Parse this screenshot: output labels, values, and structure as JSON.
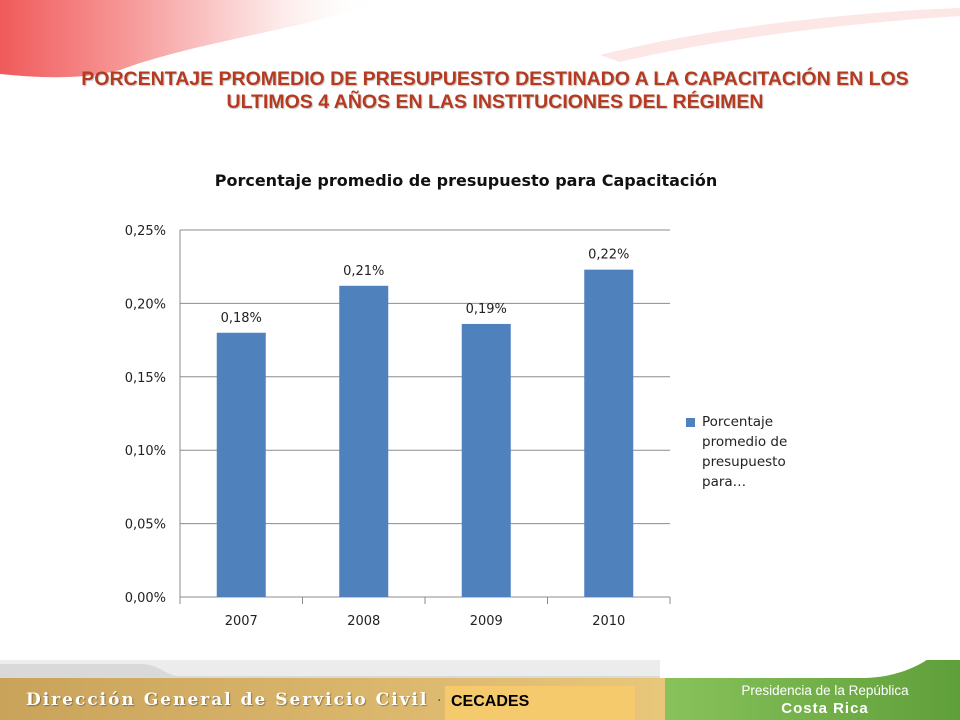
{
  "slide": {
    "title": "PORCENTAJE PROMEDIO DE PRESUPUESTO DESTINADO A LA CAPACITACIÓN EN LOS ULTIMOS 4 AÑOS EN LAS INSTITUCIONES DEL RÉGIMEN"
  },
  "colors": {
    "bar": "#4f81bd",
    "title": "#b53a1f",
    "swoosh": "#f26b6b",
    "footer_left": "#dcb766",
    "footer_right": "#7db349",
    "cecades_box": "#f4ca6c"
  },
  "chart_data": {
    "type": "bar",
    "title": "Porcentaje promedio de presupuesto para  Capacitación",
    "categories": [
      "2007",
      "2008",
      "2009",
      "2010"
    ],
    "series": [
      {
        "name": "Porcentaje promedio de presupuesto para…",
        "values": [
          0.18,
          0.212,
          0.186,
          0.223
        ],
        "data_labels": [
          "0,18%",
          "0,21%",
          "0,19%",
          "0,22%"
        ]
      }
    ],
    "y_ticks": [
      "0,00%",
      "0,05%",
      "0,10%",
      "0,15%",
      "0,20%",
      "0,25%"
    ],
    "ylim": [
      0,
      0.25
    ],
    "ylabel": "",
    "xlabel": "",
    "grid": true,
    "legend_position": "right"
  },
  "legend": {
    "text": "Porcentaje\npromedio de\npresupuesto\npara…"
  },
  "footer": {
    "left_text": "Dirección General de Servicio Civil",
    "cecades": "CECADES",
    "presidency": "Presidencia de la República",
    "country": "Costa Rica"
  }
}
